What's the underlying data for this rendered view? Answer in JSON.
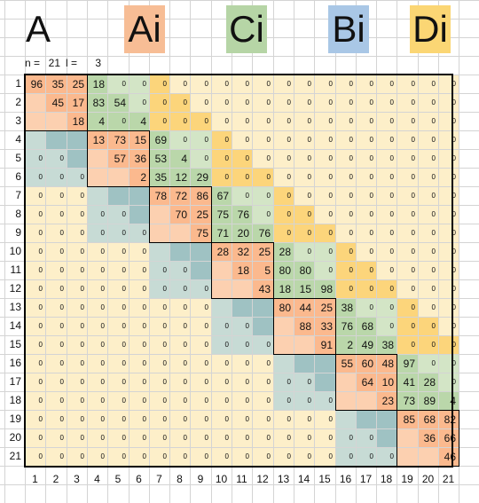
{
  "legend": {
    "A": {
      "label": "A",
      "color": "#ffffff"
    },
    "Ai": {
      "label": "Ai",
      "color": "#f7bd95"
    },
    "Ci": {
      "label": "Ci",
      "color": "#b6d5a6"
    },
    "Bi": {
      "label": "Bi",
      "color": "#a9c7e6"
    },
    "Di": {
      "label": "Di",
      "color": "#fbd674"
    }
  },
  "params": {
    "n_label": "n =",
    "n": "21",
    "l_label": "l =",
    "l": "3"
  },
  "colors": {
    "bg": "#fdefc9",
    "A": "#fbb98e",
    "B": "#9fc2c3",
    "C": "#bad7aa",
    "D": "#fcd57b",
    "Aedge": "#fcd0b0",
    "Bedge": "#c7dbd5",
    "Cedge": "#d3e5c6"
  },
  "row_labels": [
    "1",
    "2",
    "3",
    "4",
    "5",
    "6",
    "7",
    "8",
    "9",
    "10",
    "11",
    "12",
    "13",
    "14",
    "15",
    "16",
    "17",
    "18",
    "19",
    "20",
    "21"
  ],
  "col_labels": [
    "1",
    "2",
    "3",
    "4",
    "5",
    "6",
    "7",
    "8",
    "9",
    "10",
    "11",
    "12",
    "13",
    "14",
    "15",
    "16",
    "17",
    "18",
    "19",
    "20",
    "21"
  ],
  "matrix": [
    [
      "96",
      "35",
      "25",
      "18",
      "0",
      "0",
      "0",
      "0",
      "0",
      "0",
      "0",
      "0",
      "0",
      "0",
      "0",
      "0",
      "0",
      "0",
      "0",
      "0",
      "0"
    ],
    [
      "",
      "45",
      "17",
      "83",
      "54",
      "0",
      "0",
      "0",
      "0",
      "0",
      "0",
      "0",
      "0",
      "0",
      "0",
      "0",
      "0",
      "0",
      "0",
      "0",
      "0"
    ],
    [
      "",
      "",
      "18",
      "4",
      "0",
      "4",
      "0",
      "0",
      "0",
      "0",
      "0",
      "0",
      "0",
      "0",
      "0",
      "0",
      "0",
      "0",
      "0",
      "0",
      "0"
    ],
    [
      "",
      "",
      "",
      "13",
      "73",
      "15",
      "69",
      "0",
      "0",
      "0",
      "0",
      "0",
      "0",
      "0",
      "0",
      "0",
      "0",
      "0",
      "0",
      "0",
      "0"
    ],
    [
      "0",
      "0",
      "",
      "",
      "57",
      "36",
      "53",
      "4",
      "0",
      "0",
      "0",
      "0",
      "0",
      "0",
      "0",
      "0",
      "0",
      "0",
      "0",
      "0",
      "0"
    ],
    [
      "0",
      "0",
      "0",
      "",
      "",
      "2",
      "35",
      "12",
      "29",
      "0",
      "0",
      "0",
      "0",
      "0",
      "0",
      "0",
      "0",
      "0",
      "0",
      "0",
      "0"
    ],
    [
      "0",
      "0",
      "0",
      "",
      "",
      "",
      "78",
      "72",
      "86",
      "67",
      "0",
      "0",
      "0",
      "0",
      "0",
      "0",
      "0",
      "0",
      "0",
      "0",
      "0"
    ],
    [
      "0",
      "0",
      "0",
      "0",
      "0",
      "",
      "",
      "70",
      "25",
      "75",
      "76",
      "0",
      "0",
      "0",
      "0",
      "0",
      "0",
      "0",
      "0",
      "0",
      "0"
    ],
    [
      "0",
      "0",
      "0",
      "0",
      "0",
      "0",
      "",
      "",
      "75",
      "71",
      "20",
      "76",
      "0",
      "0",
      "0",
      "0",
      "0",
      "0",
      "0",
      "0",
      "0"
    ],
    [
      "0",
      "0",
      "0",
      "0",
      "0",
      "0",
      "",
      "",
      "",
      "28",
      "32",
      "25",
      "28",
      "0",
      "0",
      "0",
      "0",
      "0",
      "0",
      "0",
      "0"
    ],
    [
      "0",
      "0",
      "0",
      "0",
      "0",
      "0",
      "0",
      "0",
      "",
      "",
      "18",
      "5",
      "80",
      "80",
      "0",
      "0",
      "0",
      "0",
      "0",
      "0",
      "0"
    ],
    [
      "0",
      "0",
      "0",
      "0",
      "0",
      "0",
      "0",
      "0",
      "0",
      "",
      "",
      "43",
      "18",
      "15",
      "98",
      "0",
      "0",
      "0",
      "0",
      "0",
      "0"
    ],
    [
      "0",
      "0",
      "0",
      "0",
      "0",
      "0",
      "0",
      "0",
      "0",
      "",
      "",
      "",
      "80",
      "44",
      "25",
      "38",
      "0",
      "0",
      "0",
      "0",
      "0"
    ],
    [
      "0",
      "0",
      "0",
      "0",
      "0",
      "0",
      "0",
      "0",
      "0",
      "0",
      "0",
      "",
      "",
      "88",
      "33",
      "76",
      "68",
      "0",
      "0",
      "0",
      "0"
    ],
    [
      "0",
      "0",
      "0",
      "0",
      "0",
      "0",
      "0",
      "0",
      "0",
      "0",
      "0",
      "0",
      "",
      "",
      "91",
      "2",
      "49",
      "38",
      "0",
      "0",
      "0"
    ],
    [
      "0",
      "0",
      "0",
      "0",
      "0",
      "0",
      "0",
      "0",
      "0",
      "0",
      "0",
      "0",
      "",
      "",
      "",
      "55",
      "60",
      "48",
      "97",
      "0",
      "0"
    ],
    [
      "0",
      "0",
      "0",
      "0",
      "0",
      "0",
      "0",
      "0",
      "0",
      "0",
      "0",
      "0",
      "0",
      "0",
      "",
      "",
      "64",
      "10",
      "41",
      "28",
      "0"
    ],
    [
      "0",
      "0",
      "0",
      "0",
      "0",
      "0",
      "0",
      "0",
      "0",
      "0",
      "0",
      "0",
      "0",
      "0",
      "0",
      "",
      "",
      "23",
      "73",
      "89",
      "4"
    ],
    [
      "0",
      "0",
      "0",
      "0",
      "0",
      "0",
      "0",
      "0",
      "0",
      "0",
      "0",
      "0",
      "0",
      "0",
      "0",
      "",
      "",
      "",
      "85",
      "68",
      "82"
    ],
    [
      "0",
      "0",
      "0",
      "0",
      "0",
      "0",
      "0",
      "0",
      "0",
      "0",
      "0",
      "0",
      "0",
      "0",
      "0",
      "0",
      "0",
      "",
      "",
      "36",
      "66"
    ],
    [
      "0",
      "0",
      "0",
      "0",
      "0",
      "0",
      "0",
      "0",
      "0",
      "0",
      "0",
      "0",
      "0",
      "0",
      "0",
      "0",
      "0",
      "0",
      "",
      "",
      "46"
    ]
  ]
}
